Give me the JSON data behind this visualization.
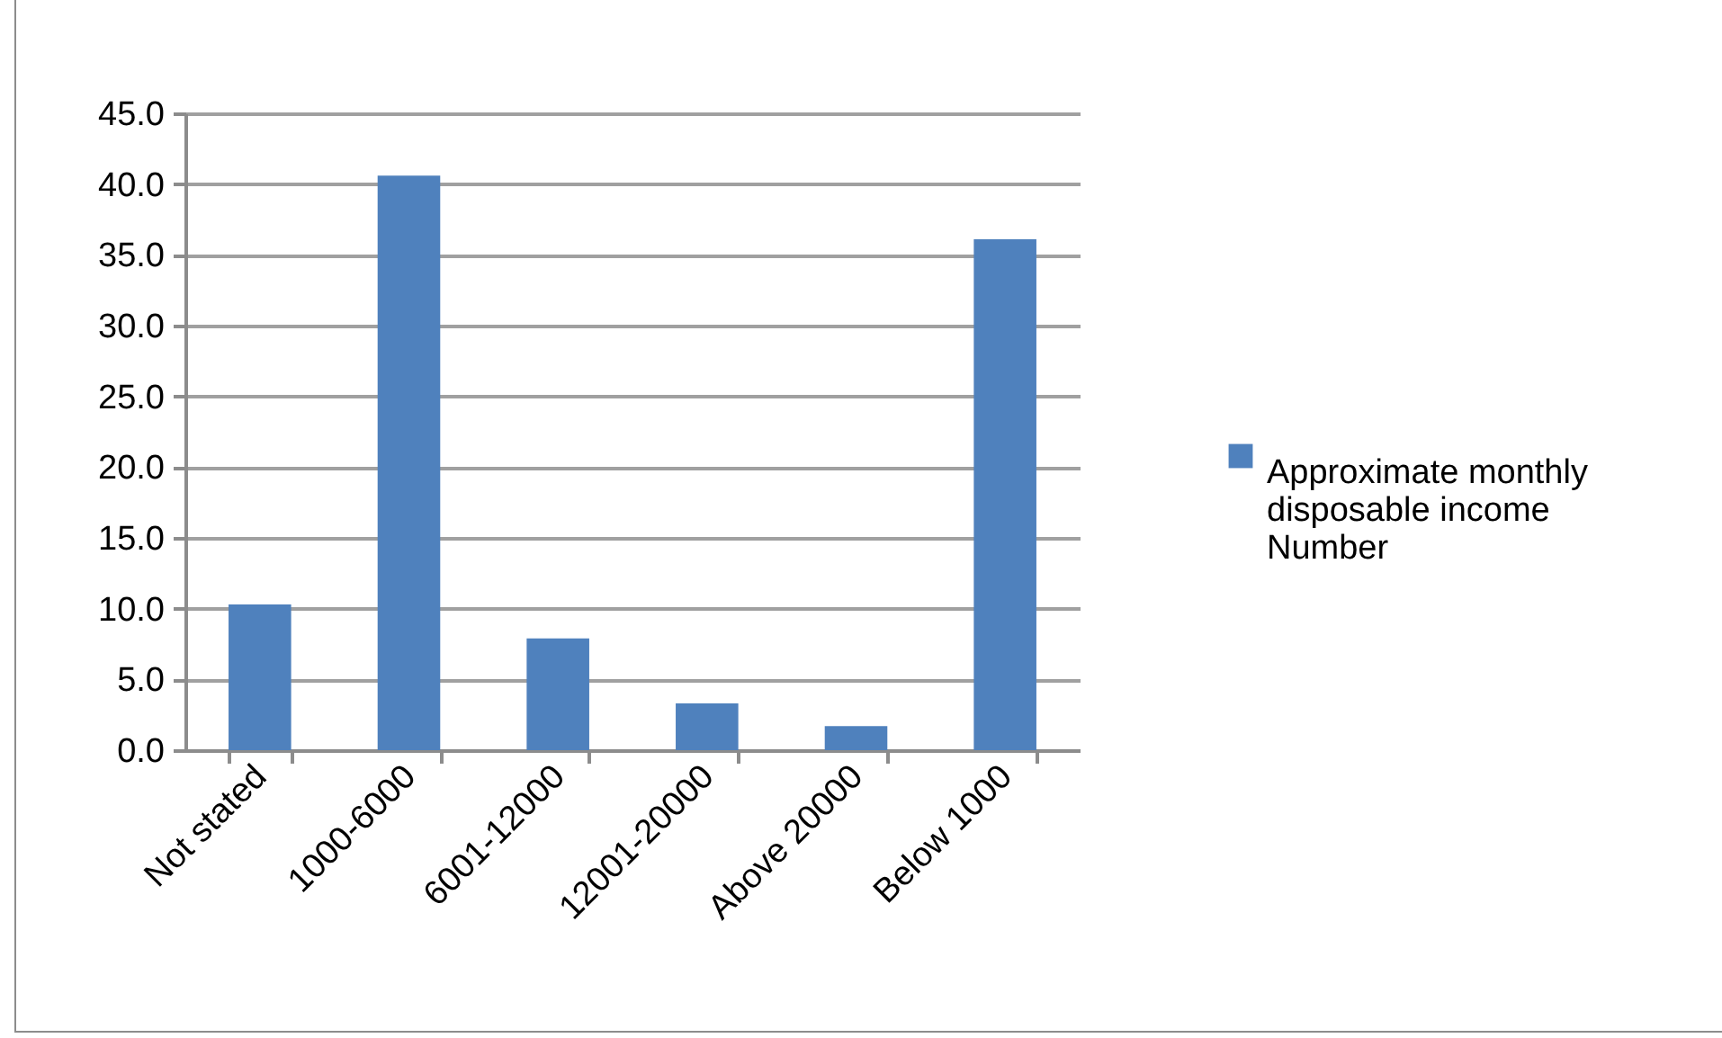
{
  "chart_data": {
    "type": "bar",
    "categories": [
      "Not stated",
      "1000-6000",
      "6001-12000",
      "12001-20000",
      "Above 20000",
      "Below 1000"
    ],
    "series": [
      {
        "name": "Approximate monthly disposable income Number",
        "color": "#4f81bd",
        "values": [
          10.3,
          40.6,
          7.9,
          3.3,
          1.7,
          36.1
        ]
      }
    ],
    "ylim": [
      0,
      45
    ],
    "yticks": [
      {
        "value": 0,
        "label": "0.0"
      },
      {
        "value": 5,
        "label": "5.0"
      },
      {
        "value": 10,
        "label": "10.0"
      },
      {
        "value": 15,
        "label": "15.0"
      },
      {
        "value": 20,
        "label": "20.0"
      },
      {
        "value": 25,
        "label": "25.0"
      },
      {
        "value": 30,
        "label": "30.0"
      },
      {
        "value": 35,
        "label": "35.0"
      },
      {
        "value": 40,
        "label": "40.0"
      },
      {
        "value": 45,
        "label": "45.0"
      }
    ],
    "grid": "y",
    "legend": "right"
  }
}
